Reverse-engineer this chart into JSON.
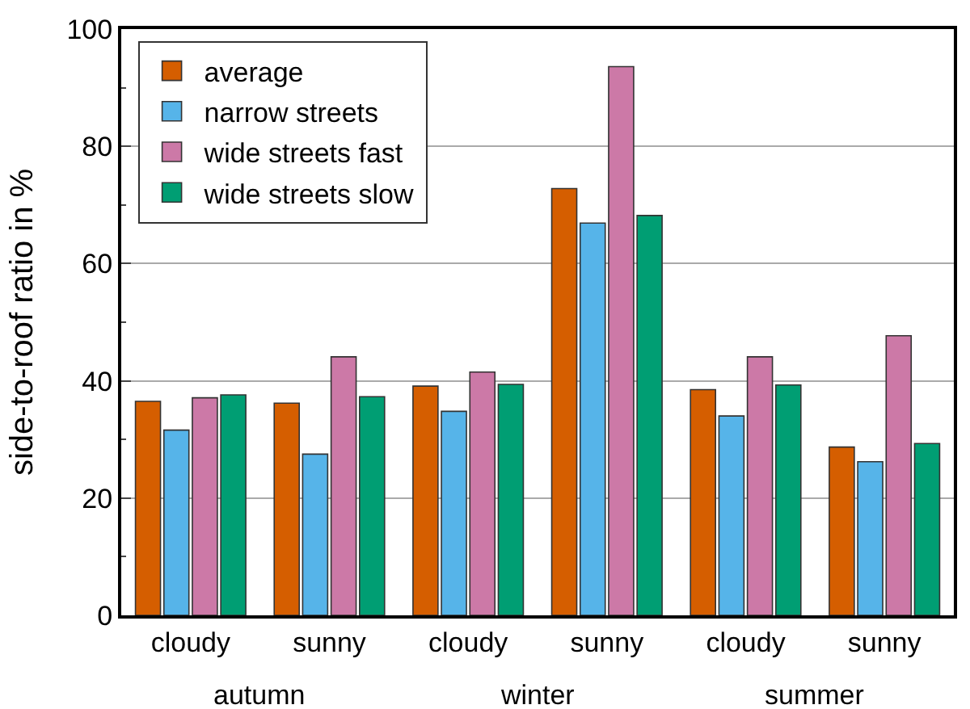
{
  "chart_data": {
    "type": "bar",
    "ylabel": "side-to-roof ratio in %",
    "categories": [
      "cloudy",
      "sunny",
      "cloudy",
      "sunny",
      "cloudy",
      "sunny"
    ],
    "annotations": [
      "autumn",
      "winter",
      "summer"
    ],
    "series": [
      {
        "name": "average",
        "color": "#d55e00",
        "values": [
          36.5,
          36.2,
          39.1,
          72.8,
          38.5,
          28.7
        ]
      },
      {
        "name": "narrow streets",
        "color": "#56b4e9",
        "values": [
          31.6,
          27.5,
          34.8,
          66.9,
          34.0,
          26.2
        ]
      },
      {
        "name": "wide streets fast",
        "color": "#cc79a7",
        "values": [
          37.1,
          44.1,
          41.5,
          93.6,
          44.1,
          47.7
        ]
      },
      {
        "name": "wide streets slow",
        "color": "#009e73",
        "values": [
          37.6,
          37.3,
          39.4,
          68.2,
          39.3,
          29.3
        ]
      }
    ],
    "ylim": [
      0,
      100
    ],
    "yticks": [
      0,
      20,
      40,
      60,
      80,
      100
    ],
    "grid": "y",
    "legend": "top left"
  }
}
